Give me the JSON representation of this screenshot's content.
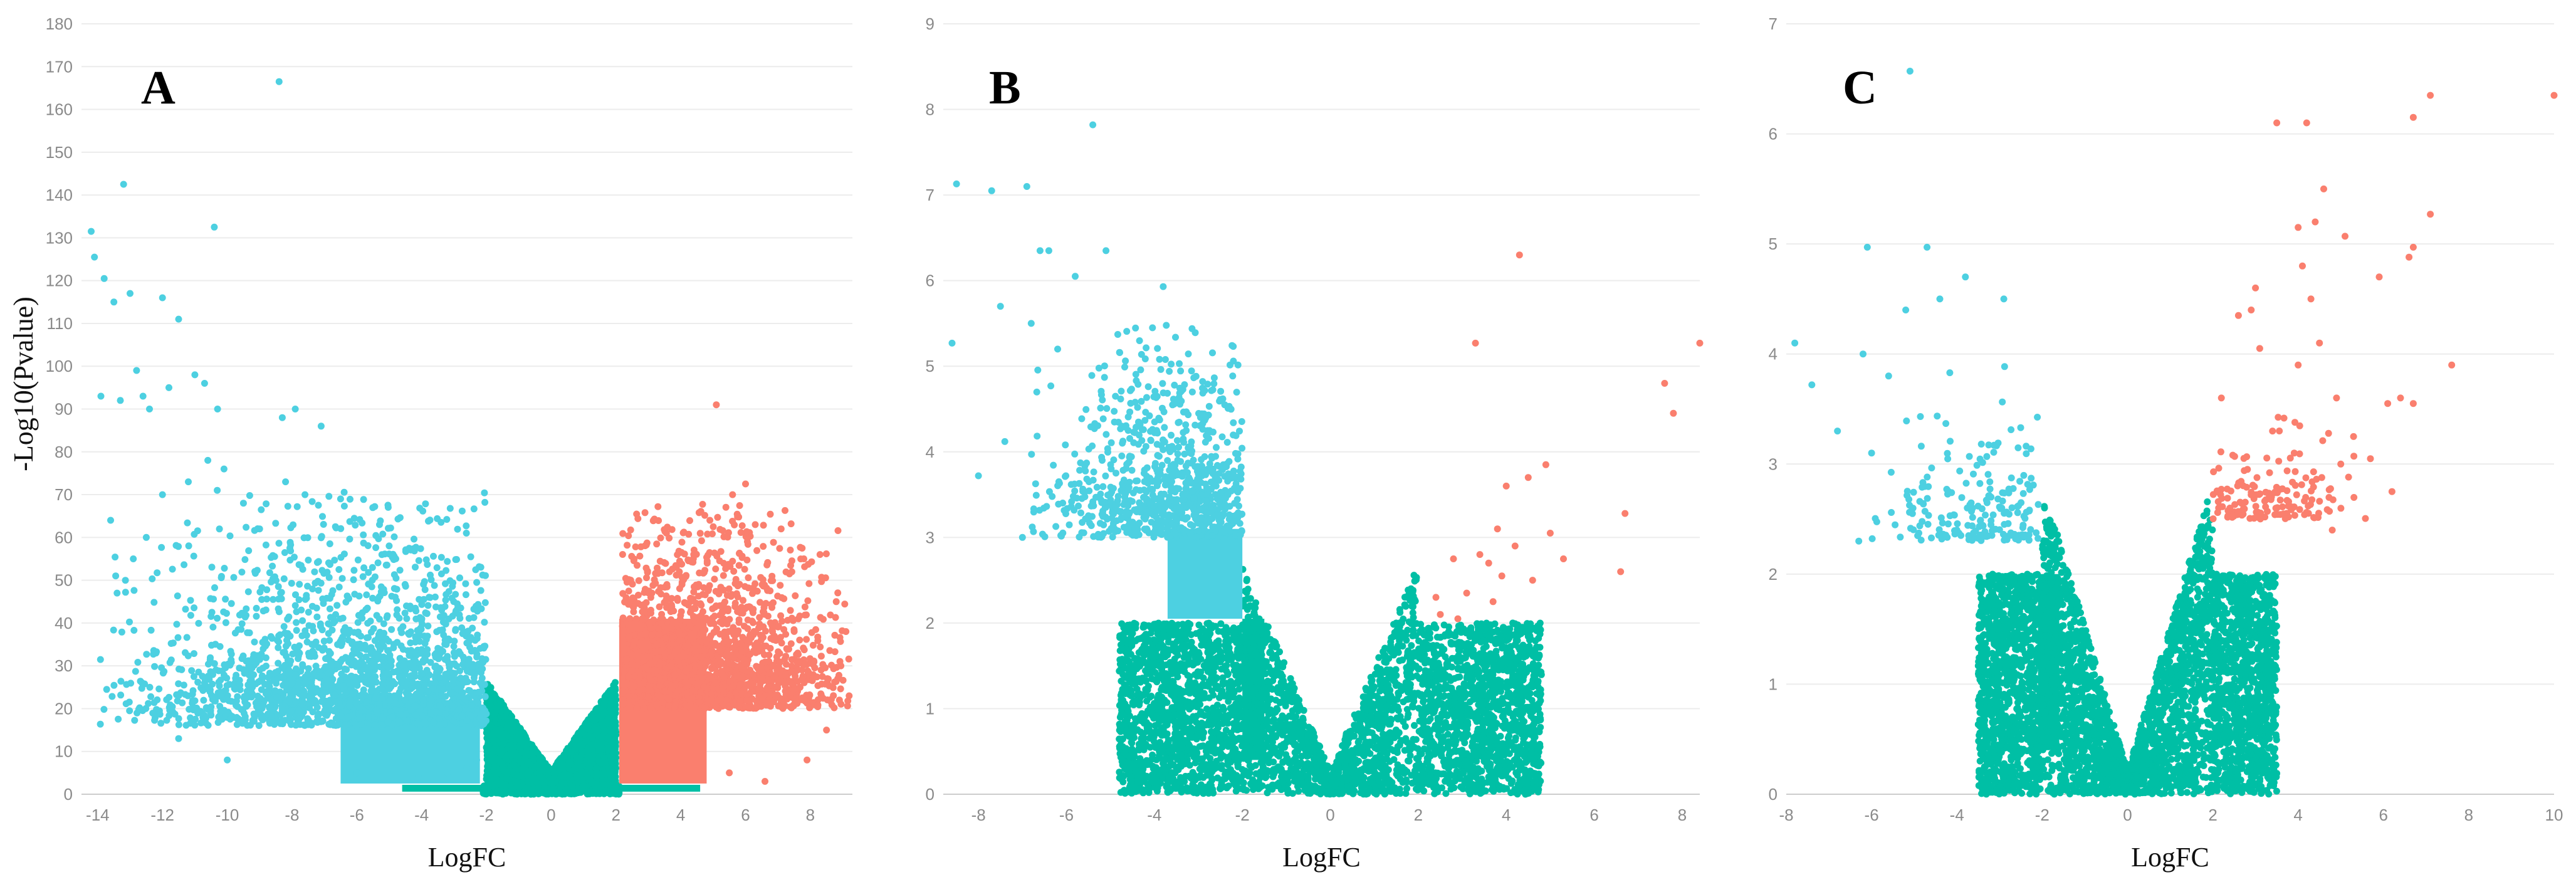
{
  "colors": {
    "down": "#4dd0e1",
    "ns": "#00bfa5",
    "up": "#fa7f6e",
    "grid": "#ececec",
    "tick_text": "#8a8a8a"
  },
  "chart_data": [
    {
      "type": "scatter",
      "panel_label": "A",
      "xlabel": "LogFC",
      "ylabel": "-Log10(Pvalue)",
      "xlim": [
        -14.5,
        9.3
      ],
      "ylim": [
        0,
        180
      ],
      "x_ticks": [
        -14,
        -12,
        -10,
        -8,
        -6,
        -4,
        -2,
        0,
        2,
        4,
        6,
        8
      ],
      "y_ticks": [
        0,
        10,
        20,
        30,
        40,
        50,
        60,
        70,
        80,
        90,
        100,
        110,
        120,
        130,
        140,
        150,
        160,
        170,
        180
      ],
      "grid": true,
      "thresholds": {
        "logfc": 2,
        "y": 2
      },
      "series": [
        {
          "key": "down",
          "points": [
            [
              -8.4,
              166.5
            ],
            [
              -13.2,
              142.5
            ],
            [
              -10.4,
              132.5
            ],
            [
              -14.2,
              131.5
            ],
            [
              -14.1,
              125.5
            ],
            [
              -13.8,
              120.5
            ],
            [
              -13.0,
              117.0
            ],
            [
              -13.5,
              115.0
            ],
            [
              -12.0,
              116.0
            ],
            [
              -11.5,
              111.0
            ],
            [
              -11.0,
              98.0
            ],
            [
              -7.9,
              90.0
            ],
            [
              -8.3,
              88.0
            ],
            [
              -7.1,
              86.0
            ],
            [
              -12.8,
              99.0
            ],
            [
              -13.9,
              93.0
            ],
            [
              -13.3,
              92.0
            ],
            [
              -12.4,
              90.0
            ],
            [
              -12.6,
              93.0
            ],
            [
              -11.8,
              95.0
            ],
            [
              -10.7,
              96.0
            ],
            [
              -13.6,
              64.0
            ],
            [
              -13.4,
              47.0
            ],
            [
              -12.2,
              33.0
            ],
            [
              -11.5,
              13.0
            ],
            [
              -10.0,
              8.0
            ],
            [
              -12.9,
              55.0
            ],
            [
              -12.5,
              60.0
            ],
            [
              -12.0,
              70.0
            ],
            [
              -11.2,
              73.0
            ],
            [
              -10.6,
              78.0
            ],
            [
              -10.1,
              76.0
            ],
            [
              -9.5,
              68.0
            ],
            [
              -8.2,
              73.0
            ],
            [
              -7.6,
              70.0
            ],
            [
              -6.5,
              69.0
            ],
            [
              -5.3,
              63.0
            ],
            [
              -9.0,
              62.0
            ],
            [
              -10.3,
              90.0
            ],
            [
              -6.0,
              5.0
            ],
            [
              -4.1,
              4.0
            ],
            [
              -3.2,
              5.0
            ],
            [
              -2.6,
              6.0
            ],
            [
              -2.3,
              8.0
            ]
          ],
          "clusters": [
            {
              "x": [
                -14,
                -2
              ],
              "y": [
                2,
                72
              ],
              "n": 2800,
              "peak": [
                -4.8,
                16
              ]
            }
          ],
          "boxes": [
            {
              "x": [
                -6.5,
                -2.2
              ],
              "y": [
                2.5,
                22
              ]
            }
          ]
        },
        {
          "key": "up",
          "points": [
            [
              5.1,
              91.0
            ],
            [
              6.0,
              72.5
            ],
            [
              5.6,
              70.0
            ],
            [
              6.3,
              63.0
            ],
            [
              4.9,
              64.0
            ],
            [
              7.1,
              62.0
            ],
            [
              8.3,
              56.0
            ],
            [
              7.8,
              55.0
            ],
            [
              8.8,
              45.0
            ],
            [
              9.1,
              38.0
            ],
            [
              9.2,
              23.0
            ],
            [
              8.9,
              22.0
            ],
            [
              8.5,
              15.0
            ],
            [
              5.5,
              5.0
            ],
            [
              7.9,
              8.0
            ],
            [
              6.6,
              3.0
            ]
          ],
          "clusters": [
            {
              "x": [
                2.2,
                9.2
              ],
              "y": [
                2,
                68
              ],
              "n": 2300,
              "peak": [
                4.5,
                20
              ]
            }
          ],
          "boxes": [
            {
              "x": [
                2.1,
                4.8
              ],
              "y": [
                2.5,
                41
              ]
            }
          ]
        },
        {
          "key": "ns",
          "clusters": [
            {
              "vshape": true,
              "xmax": 2.1,
              "yslope": 10.0,
              "n": 3500
            }
          ],
          "boxes": [
            {
              "x": [
                -2.05,
                -1.9
              ],
              "y": [
                0.5,
                21
              ]
            },
            {
              "x": [
                1.9,
                2.05
              ],
              "y": [
                0.5,
                23
              ]
            },
            {
              "x": [
                -4.6,
                4.6
              ],
              "y": [
                0.6,
                2.2
              ]
            }
          ]
        }
      ]
    },
    {
      "type": "scatter",
      "panel_label": "B",
      "xlabel": "LogFC",
      "ylabel": "",
      "xlim": [
        -8.8,
        8.4
      ],
      "ylim": [
        0,
        9
      ],
      "x_ticks": [
        -8,
        -6,
        -4,
        -2,
        0,
        2,
        4,
        6,
        8
      ],
      "y_ticks": [
        0,
        1,
        2,
        3,
        4,
        5,
        6,
        7,
        8,
        9
      ],
      "grid": true,
      "thresholds": {
        "logfc": 2,
        "y": 2
      },
      "series": [
        {
          "key": "down",
          "points": [
            [
              -5.4,
              7.82
            ],
            [
              -8.5,
              7.13
            ],
            [
              -7.7,
              7.05
            ],
            [
              -6.9,
              7.1
            ],
            [
              -6.6,
              6.35
            ],
            [
              -6.4,
              6.35
            ],
            [
              -5.1,
              6.35
            ],
            [
              -8.6,
              5.27
            ],
            [
              -7.4,
              4.12
            ],
            [
              -8.0,
              3.72
            ],
            [
              -5.8,
              6.05
            ],
            [
              -7.5,
              5.7
            ],
            [
              -3.8,
              5.93
            ],
            [
              -6.8,
              5.5
            ],
            [
              -6.2,
              5.2
            ],
            [
              -7.0,
              3.0
            ]
          ],
          "clusters": [
            {
              "x": [
                -6.8,
                -2.0
              ],
              "y": [
                2.05,
                5.5
              ],
              "n": 1200,
              "peak": [
                -3.3,
                3.0
              ]
            }
          ],
          "boxes": [
            {
              "x": [
                -3.7,
                -2.0
              ],
              "y": [
                2.05,
                3.1
              ]
            }
          ]
        },
        {
          "key": "up",
          "points": [
            [
              4.3,
              6.3
            ],
            [
              8.4,
              5.27
            ],
            [
              3.3,
              5.27
            ],
            [
              7.6,
              4.8
            ],
            [
              7.8,
              4.45
            ],
            [
              4.9,
              3.85
            ],
            [
              4.5,
              3.7
            ],
            [
              4.0,
              3.6
            ],
            [
              6.7,
              3.28
            ],
            [
              5.0,
              3.05
            ],
            [
              3.8,
              3.1
            ],
            [
              4.2,
              2.9
            ],
            [
              3.6,
              2.7
            ],
            [
              3.4,
              2.8
            ],
            [
              5.3,
              2.75
            ],
            [
              4.6,
              2.5
            ],
            [
              6.6,
              2.6
            ],
            [
              2.8,
              2.75
            ],
            [
              3.1,
              2.35
            ],
            [
              2.4,
              2.3
            ],
            [
              2.5,
              2.1
            ],
            [
              2.9,
              2.05
            ],
            [
              3.9,
              2.55
            ],
            [
              3.7,
              2.25
            ]
          ],
          "clusters": []
        },
        {
          "key": "ns",
          "clusters": [
            {
              "vshape": true,
              "xmax": 4.8,
              "yslope": 1.15,
              "n": 4200,
              "ymaxcap": 3.6
            }
          ],
          "boxes": [
            {
              "x": [
                -2.0,
                -1.5
              ],
              "y": [
                0.4,
                2.05
              ]
            }
          ]
        }
      ]
    },
    {
      "type": "scatter",
      "panel_label": "C",
      "xlabel": "LogFC",
      "ylabel": "",
      "xlim": [
        -8.0,
        10.0
      ],
      "ylim": [
        0,
        7
      ],
      "x_ticks": [
        -8,
        -6,
        -4,
        -2,
        0,
        2,
        4,
        6,
        8,
        10
      ],
      "y_ticks": [
        0,
        1,
        2,
        3,
        4,
        5,
        6,
        7
      ],
      "grid": true,
      "thresholds": {
        "logfc": 2,
        "y": 2
      },
      "series": [
        {
          "key": "down",
          "points": [
            [
              -5.1,
              6.57
            ],
            [
              -6.1,
              4.97
            ],
            [
              -4.7,
              4.97
            ],
            [
              -4.4,
              4.5
            ],
            [
              -3.8,
              4.7
            ],
            [
              -7.8,
              4.1
            ],
            [
              -5.2,
              4.4
            ],
            [
              -6.2,
              4.0
            ],
            [
              -7.4,
              3.72
            ],
            [
              -6.8,
              3.3
            ],
            [
              -6.0,
              3.1
            ],
            [
              -2.9,
              4.5
            ],
            [
              -5.6,
              3.8
            ],
            [
              -6.3,
              2.3
            ],
            [
              -4.0,
              2.4
            ],
            [
              -3.2,
              2.7
            ]
          ],
          "clusters": [
            {
              "x": [
                -6.2,
                -2.0
              ],
              "y": [
                2.0,
                4.0
              ],
              "n": 260,
              "peak": [
                -3.1,
                2.3
              ]
            }
          ]
        },
        {
          "key": "up",
          "points": [
            [
              10.0,
              6.35
            ],
            [
              7.1,
              6.35
            ],
            [
              6.7,
              6.15
            ],
            [
              3.5,
              6.1
            ],
            [
              4.2,
              6.1
            ],
            [
              4.6,
              5.5
            ],
            [
              7.1,
              5.27
            ],
            [
              4.0,
              5.15
            ],
            [
              4.4,
              5.2
            ],
            [
              6.7,
              4.97
            ],
            [
              5.1,
              5.07
            ],
            [
              6.6,
              4.88
            ],
            [
              4.1,
              4.8
            ],
            [
              5.9,
              4.7
            ],
            [
              3.0,
              4.6
            ],
            [
              4.3,
              4.5
            ],
            [
              2.9,
              4.4
            ],
            [
              2.6,
              4.35
            ],
            [
              4.5,
              4.1
            ],
            [
              3.1,
              4.05
            ],
            [
              7.6,
              3.9
            ],
            [
              4.0,
              3.9
            ],
            [
              2.2,
              3.6
            ],
            [
              6.4,
              3.6
            ],
            [
              6.7,
              3.55
            ],
            [
              6.1,
              3.55
            ],
            [
              4.9,
              3.6
            ],
            [
              6.2,
              2.75
            ],
            [
              3.4,
              3.3
            ],
            [
              5.3,
              3.25
            ],
            [
              5.0,
              3.0
            ],
            [
              2.4,
              2.6
            ],
            [
              4.8,
              2.4
            ]
          ],
          "clusters": [
            {
              "x": [
                2.0,
                6.0
              ],
              "y": [
                2.0,
                3.5
              ],
              "n": 200,
              "peak": [
                3.2,
                2.5
              ]
            }
          ]
        },
        {
          "key": "ns",
          "clusters": [
            {
              "vshape": true,
              "xmax": 3.5,
              "yslope": 1.25,
              "n": 4200,
              "ymaxcap": 2.7
            }
          ],
          "boxes": [
            {
              "x": [
                -2.1,
                -1.6
              ],
              "y": [
                0.4,
                2.0
              ]
            }
          ]
        }
      ]
    }
  ]
}
